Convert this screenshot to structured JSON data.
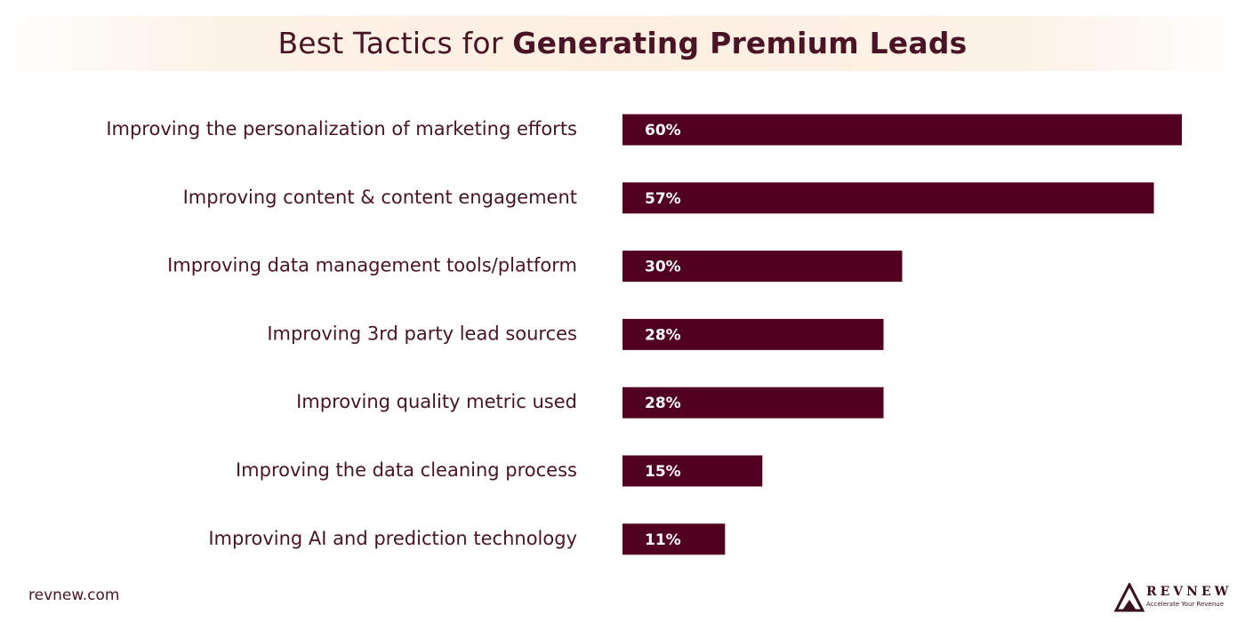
{
  "header": {
    "title_regular": "Best Tactics for",
    "title_bold": "Generating Premium Leads"
  },
  "chart_data": {
    "type": "bar",
    "orientation": "horizontal",
    "title": "Best Tactics for Generating Premium Leads",
    "categories": [
      "Improving the personalization of marketing efforts",
      "Improving content & content engagement",
      "Improving data management tools/platform",
      "Improving 3rd party lead sources",
      "Improving quality metric used",
      "Improving the data cleaning process",
      "Improving AI and prediction technology"
    ],
    "values": [
      60,
      57,
      30,
      28,
      28,
      15,
      11
    ],
    "value_labels": [
      "60%",
      "57%",
      "30%",
      "28%",
      "28%",
      "15%",
      "11%"
    ],
    "unit": "%",
    "xlim": [
      0,
      60
    ],
    "grid": false,
    "legend": "none",
    "bar_color": "#52001f",
    "label_color": "#4a1326",
    "value_label_color": "#ffffff"
  },
  "footer": {
    "site": "revnew.com",
    "logo_name": "REVNEW",
    "logo_tagline": "Accelerate Your Revenue"
  }
}
